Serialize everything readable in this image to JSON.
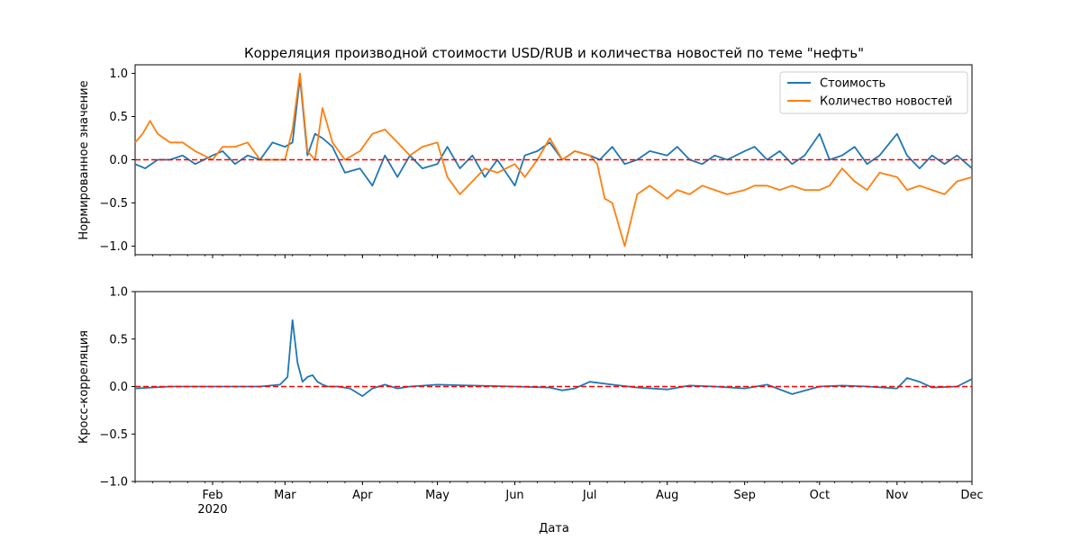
{
  "title": "Корреляция производной стоимости USD/RUB и количества новостей по теме \"нефть\"",
  "xlabel": "Дата",
  "colors": {
    "price": "#1f77b4",
    "news": "#ff7f0e",
    "zero_line": "#ff0000",
    "axes": "#000000"
  },
  "x_axis": {
    "range": [
      "2020-01-01",
      "2020-12-01"
    ],
    "ticks": [
      {
        "date": "2020-02-01",
        "label": "Feb",
        "sublabel": "2020"
      },
      {
        "date": "2020-03-01",
        "label": "Mar"
      },
      {
        "date": "2020-04-01",
        "label": "Apr"
      },
      {
        "date": "2020-05-01",
        "label": "May"
      },
      {
        "date": "2020-06-01",
        "label": "Jun"
      },
      {
        "date": "2020-07-01",
        "label": "Jul"
      },
      {
        "date": "2020-08-01",
        "label": "Aug"
      },
      {
        "date": "2020-09-01",
        "label": "Sep"
      },
      {
        "date": "2020-10-01",
        "label": "Oct"
      },
      {
        "date": "2020-11-01",
        "label": "Nov"
      },
      {
        "date": "2020-12-01",
        "label": "Dec"
      }
    ],
    "minor_ticks": "weekly"
  },
  "chart_data": [
    {
      "type": "line",
      "ylabel": "Нормированное значение",
      "ylim": [
        -1.1,
        1.1
      ],
      "yticks": [
        "1.0",
        "0.5",
        "0.0",
        "−0.5",
        "−1.0"
      ],
      "ytick_values": [
        1.0,
        0.5,
        0.0,
        -0.5,
        -1.0
      ],
      "reference_line": {
        "y": 0,
        "style": "dashed",
        "color": "#ff0000"
      },
      "grid": false,
      "legend": {
        "placement": "top-right"
      },
      "series": [
        {
          "name": "Стоимость",
          "color": "#1f77b4",
          "x": [
            "2020-01-01",
            "2020-01-05",
            "2020-01-10",
            "2020-01-15",
            "2020-01-20",
            "2020-01-25",
            "2020-02-01",
            "2020-02-05",
            "2020-02-10",
            "2020-02-15",
            "2020-02-20",
            "2020-02-25",
            "2020-03-01",
            "2020-03-04",
            "2020-03-07",
            "2020-03-10",
            "2020-03-13",
            "2020-03-16",
            "2020-03-20",
            "2020-03-25",
            "2020-03-31",
            "2020-04-05",
            "2020-04-10",
            "2020-04-15",
            "2020-04-20",
            "2020-04-25",
            "2020-05-01",
            "2020-05-05",
            "2020-05-10",
            "2020-05-15",
            "2020-05-20",
            "2020-05-25",
            "2020-06-01",
            "2020-06-05",
            "2020-06-10",
            "2020-06-15",
            "2020-06-20",
            "2020-06-25",
            "2020-07-01",
            "2020-07-05",
            "2020-07-10",
            "2020-07-15",
            "2020-07-20",
            "2020-07-25",
            "2020-08-01",
            "2020-08-05",
            "2020-08-10",
            "2020-08-15",
            "2020-08-20",
            "2020-08-25",
            "2020-09-01",
            "2020-09-05",
            "2020-09-10",
            "2020-09-15",
            "2020-09-20",
            "2020-09-25",
            "2020-10-01",
            "2020-10-05",
            "2020-10-10",
            "2020-10-15",
            "2020-10-20",
            "2020-10-25",
            "2020-11-01",
            "2020-11-05",
            "2020-11-10",
            "2020-11-15",
            "2020-11-20",
            "2020-11-25",
            "2020-12-01"
          ],
          "values": [
            -0.05,
            -0.1,
            0.0,
            0.0,
            0.05,
            -0.05,
            0.05,
            0.1,
            -0.05,
            0.05,
            0.0,
            0.2,
            0.15,
            0.2,
            0.95,
            0.05,
            0.3,
            0.25,
            0.15,
            -0.15,
            -0.1,
            -0.3,
            0.05,
            -0.2,
            0.05,
            -0.1,
            -0.05,
            0.15,
            -0.1,
            0.05,
            -0.2,
            0.0,
            -0.3,
            0.05,
            0.1,
            0.2,
            0.0,
            0.1,
            0.05,
            0.0,
            0.15,
            -0.05,
            0.0,
            0.1,
            0.05,
            0.15,
            0.0,
            -0.05,
            0.05,
            0.0,
            0.1,
            0.15,
            0.0,
            0.1,
            -0.05,
            0.05,
            0.3,
            0.0,
            0.05,
            0.15,
            -0.05,
            0.05,
            0.3,
            0.05,
            -0.1,
            0.05,
            -0.05,
            0.05,
            -0.1
          ]
        },
        {
          "name": "Количество новостей",
          "color": "#ff7f0e",
          "x": [
            "2020-01-01",
            "2020-01-04",
            "2020-01-07",
            "2020-01-10",
            "2020-01-15",
            "2020-01-20",
            "2020-01-25",
            "2020-02-01",
            "2020-02-05",
            "2020-02-10",
            "2020-02-15",
            "2020-02-20",
            "2020-02-25",
            "2020-03-01",
            "2020-03-04",
            "2020-03-07",
            "2020-03-10",
            "2020-03-13",
            "2020-03-16",
            "2020-03-20",
            "2020-03-25",
            "2020-03-31",
            "2020-04-05",
            "2020-04-10",
            "2020-04-15",
            "2020-04-20",
            "2020-04-25",
            "2020-05-01",
            "2020-05-05",
            "2020-05-10",
            "2020-05-15",
            "2020-05-20",
            "2020-05-25",
            "2020-06-01",
            "2020-06-05",
            "2020-06-10",
            "2020-06-15",
            "2020-06-20",
            "2020-06-25",
            "2020-07-01",
            "2020-07-04",
            "2020-07-07",
            "2020-07-10",
            "2020-07-15",
            "2020-07-20",
            "2020-07-25",
            "2020-08-01",
            "2020-08-05",
            "2020-08-10",
            "2020-08-15",
            "2020-08-20",
            "2020-08-25",
            "2020-09-01",
            "2020-09-05",
            "2020-09-10",
            "2020-09-15",
            "2020-09-20",
            "2020-09-25",
            "2020-10-01",
            "2020-10-05",
            "2020-10-10",
            "2020-10-15",
            "2020-10-20",
            "2020-10-25",
            "2020-11-01",
            "2020-11-05",
            "2020-11-10",
            "2020-11-15",
            "2020-11-20",
            "2020-11-25",
            "2020-12-01"
          ],
          "values": [
            0.2,
            0.3,
            0.45,
            0.3,
            0.2,
            0.2,
            0.1,
            0.0,
            0.15,
            0.15,
            0.2,
            0.0,
            0.0,
            0.0,
            0.35,
            1.0,
            0.1,
            0.0,
            0.6,
            0.2,
            0.0,
            0.1,
            0.3,
            0.35,
            0.2,
            0.05,
            0.15,
            0.2,
            -0.2,
            -0.4,
            -0.25,
            -0.1,
            -0.15,
            -0.05,
            -0.2,
            0.0,
            0.25,
            0.0,
            0.1,
            0.05,
            -0.05,
            -0.45,
            -0.5,
            -1.0,
            -0.4,
            -0.3,
            -0.45,
            -0.35,
            -0.4,
            -0.3,
            -0.35,
            -0.4,
            -0.35,
            -0.3,
            -0.3,
            -0.35,
            -0.3,
            -0.35,
            -0.35,
            -0.3,
            -0.1,
            -0.25,
            -0.35,
            -0.15,
            -0.2,
            -0.35,
            -0.3,
            -0.35,
            -0.4,
            -0.25,
            -0.2
          ]
        }
      ]
    },
    {
      "type": "line",
      "ylabel": "Кросс-корреляция",
      "ylim": [
        -1.0,
        1.0
      ],
      "yticks": [
        "1.0",
        "0.5",
        "0.0",
        "−0.5",
        "−1.0"
      ],
      "ytick_values": [
        1.0,
        0.5,
        0.0,
        -0.5,
        -1.0
      ],
      "reference_line": {
        "y": 0,
        "style": "dashed",
        "color": "#ff0000"
      },
      "grid": false,
      "series": [
        {
          "color": "#1f77b4",
          "x": [
            "2020-01-01",
            "2020-01-15",
            "2020-02-01",
            "2020-02-20",
            "2020-02-28",
            "2020-03-02",
            "2020-03-04",
            "2020-03-06",
            "2020-03-08",
            "2020-03-10",
            "2020-03-12",
            "2020-03-14",
            "2020-03-16",
            "2020-03-18",
            "2020-03-22",
            "2020-03-27",
            "2020-04-01",
            "2020-04-05",
            "2020-04-10",
            "2020-04-15",
            "2020-04-20",
            "2020-05-01",
            "2020-05-15",
            "2020-06-01",
            "2020-06-15",
            "2020-06-20",
            "2020-06-25",
            "2020-07-01",
            "2020-07-10",
            "2020-07-20",
            "2020-08-01",
            "2020-08-10",
            "2020-08-20",
            "2020-09-01",
            "2020-09-10",
            "2020-09-20",
            "2020-10-01",
            "2020-10-10",
            "2020-10-20",
            "2020-11-01",
            "2020-11-05",
            "2020-11-10",
            "2020-11-15",
            "2020-11-25",
            "2020-12-01"
          ],
          "values": [
            -0.02,
            0.0,
            0.0,
            0.0,
            0.02,
            0.1,
            0.7,
            0.25,
            0.05,
            0.1,
            0.12,
            0.05,
            0.02,
            0.0,
            0.0,
            -0.02,
            -0.1,
            -0.02,
            0.02,
            -0.02,
            0.0,
            0.02,
            0.01,
            0.0,
            -0.01,
            -0.04,
            -0.02,
            0.05,
            0.02,
            -0.01,
            -0.03,
            0.01,
            0.0,
            -0.02,
            0.02,
            -0.08,
            0.0,
            0.01,
            0.0,
            -0.02,
            0.09,
            0.05,
            -0.01,
            0.0,
            0.08
          ]
        }
      ]
    }
  ]
}
